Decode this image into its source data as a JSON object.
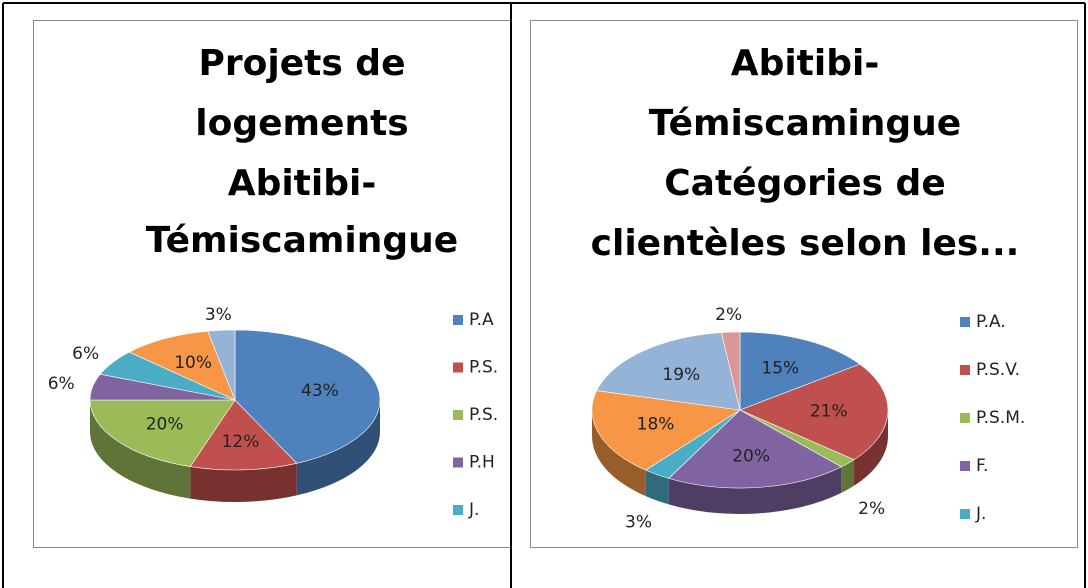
{
  "chart_data": [
    {
      "type": "pie",
      "title": [
        "Projets de",
        "logements",
        "Abitibi-",
        "Témiscamingue"
      ],
      "categories": [
        "P.A",
        "P.S.",
        "P.S.",
        "P.H",
        "J.",
        null,
        null
      ],
      "values": [
        43,
        12,
        20,
        6,
        6,
        10,
        3
      ],
      "value_labels": [
        "43%",
        "12%",
        "20%",
        "6%",
        "6%",
        "10%",
        "3%"
      ],
      "colors": [
        "#4f81bd",
        "#c0504d",
        "#9bbb59",
        "#8064a2",
        "#4bacc6",
        "#f79646",
        "#95b3d7"
      ]
    },
    {
      "type": "pie",
      "title": [
        "Abitibi-",
        "Témiscamingue",
        "Catégories de",
        "clientèles selon les..."
      ],
      "categories": [
        "P.A.",
        "P.S.V.",
        "P.S.M.",
        "F.",
        "J.",
        null,
        null,
        null
      ],
      "values": [
        15,
        21,
        2,
        20,
        3,
        18,
        19,
        2
      ],
      "value_labels": [
        "15%",
        "21%",
        "2%",
        "20%",
        "3%",
        "18%",
        "19%",
        "2%"
      ],
      "colors": [
        "#4f81bd",
        "#c0504d",
        "#9bbb59",
        "#8064a2",
        "#4bacc6",
        "#f79646",
        "#95b3d7",
        "#d99694"
      ]
    }
  ]
}
